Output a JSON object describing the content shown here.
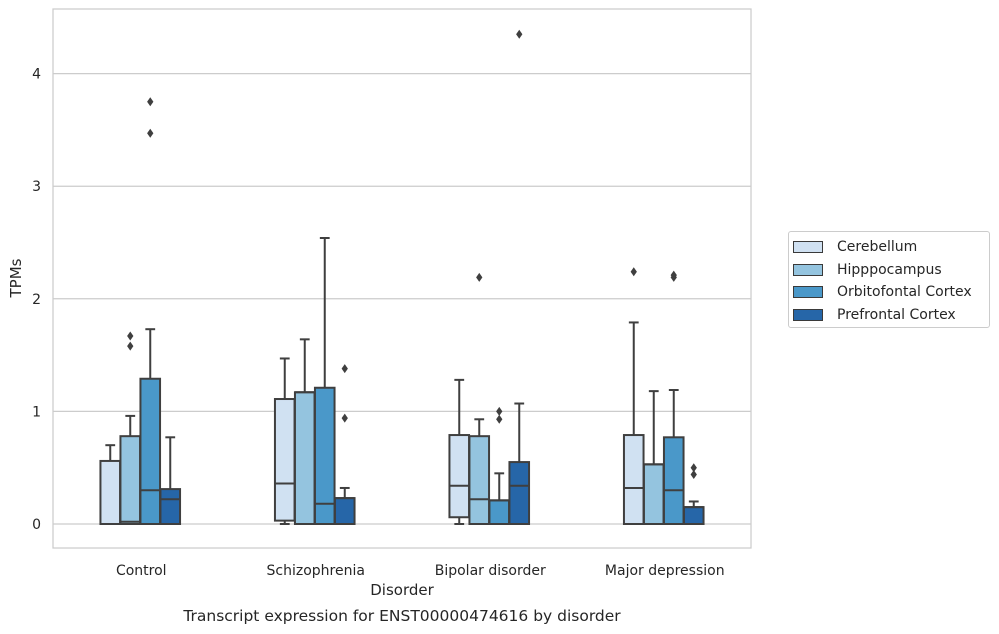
{
  "chart_data": {
    "type": "box",
    "title": "Transcript expression for ENST00000474616 by disorder",
    "xlabel": "Disorder",
    "ylabel": "TPMs",
    "ylim": [
      -0.2,
      4.58
    ],
    "yticks": [
      "0",
      "1",
      "2",
      "3",
      "4"
    ],
    "grid": true,
    "legend_position": "right",
    "categories": [
      "Control",
      "Schizophrenia",
      "Bipolar disorder",
      "Major depression"
    ],
    "series": [
      {
        "name": "Cerebellum",
        "color": "#d0e1f2",
        "boxes": [
          {
            "whislo": 0,
            "q1": 0,
            "med": 0,
            "q3": 0.56,
            "whishi": 0.7,
            "fliers": []
          },
          {
            "whislo": 0,
            "q1": 0.03,
            "med": 0.36,
            "q3": 1.11,
            "whishi": 1.47,
            "fliers": []
          },
          {
            "whislo": 0,
            "q1": 0.06,
            "med": 0.34,
            "q3": 0.79,
            "whishi": 1.28,
            "fliers": []
          },
          {
            "whislo": 0,
            "q1": 0,
            "med": 0.32,
            "q3": 0.79,
            "whishi": 1.79,
            "fliers": [
              2.24
            ]
          }
        ]
      },
      {
        "name": "Hipppocampus",
        "color": "#94c4df",
        "boxes": [
          {
            "whislo": 0,
            "q1": 0,
            "med": 0.02,
            "q3": 0.78,
            "whishi": 0.96,
            "fliers": [
              1.58,
              1.67
            ]
          },
          {
            "whislo": 0,
            "q1": 0,
            "med": 1.17,
            "q3": 1.17,
            "whishi": 1.64,
            "fliers": []
          },
          {
            "whislo": 0,
            "q1": 0,
            "med": 0.22,
            "q3": 0.78,
            "whishi": 0.93,
            "fliers": [
              2.19
            ]
          },
          {
            "whislo": 0,
            "q1": 0,
            "med": 0.53,
            "q3": 0.53,
            "whishi": 1.18,
            "fliers": []
          }
        ]
      },
      {
        "name": "Orbitofontal Cortex",
        "color": "#4a98c9",
        "boxes": [
          {
            "whislo": 0,
            "q1": 0,
            "med": 0.3,
            "q3": 1.29,
            "whishi": 1.73,
            "fliers": [
              3.47,
              3.75
            ]
          },
          {
            "whislo": 0,
            "q1": 0,
            "med": 0.18,
            "q3": 1.21,
            "whishi": 2.54,
            "fliers": []
          },
          {
            "whislo": 0,
            "q1": 0,
            "med": 0.21,
            "q3": 0.21,
            "whishi": 0.45,
            "fliers": [
              0.93,
              1.0
            ]
          },
          {
            "whislo": 0,
            "q1": 0,
            "med": 0.3,
            "q3": 0.77,
            "whishi": 1.19,
            "fliers": [
              2.19,
              2.21
            ]
          }
        ]
      },
      {
        "name": "Prefrontal Cortex",
        "color": "#2666a8",
        "boxes": [
          {
            "whislo": 0,
            "q1": 0,
            "med": 0.22,
            "q3": 0.31,
            "whishi": 0.77,
            "fliers": []
          },
          {
            "whislo": 0,
            "q1": 0,
            "med": 0.23,
            "q3": 0.23,
            "whishi": 0.32,
            "fliers": [
              0.94,
              1.38
            ]
          },
          {
            "whislo": 0,
            "q1": 0,
            "med": 0.34,
            "q3": 0.55,
            "whishi": 1.07,
            "fliers": [
              4.35
            ]
          },
          {
            "whislo": 0,
            "q1": 0,
            "med": 0.15,
            "q3": 0.15,
            "whishi": 0.2,
            "fliers": [
              0.44,
              0.5
            ]
          }
        ]
      }
    ]
  }
}
